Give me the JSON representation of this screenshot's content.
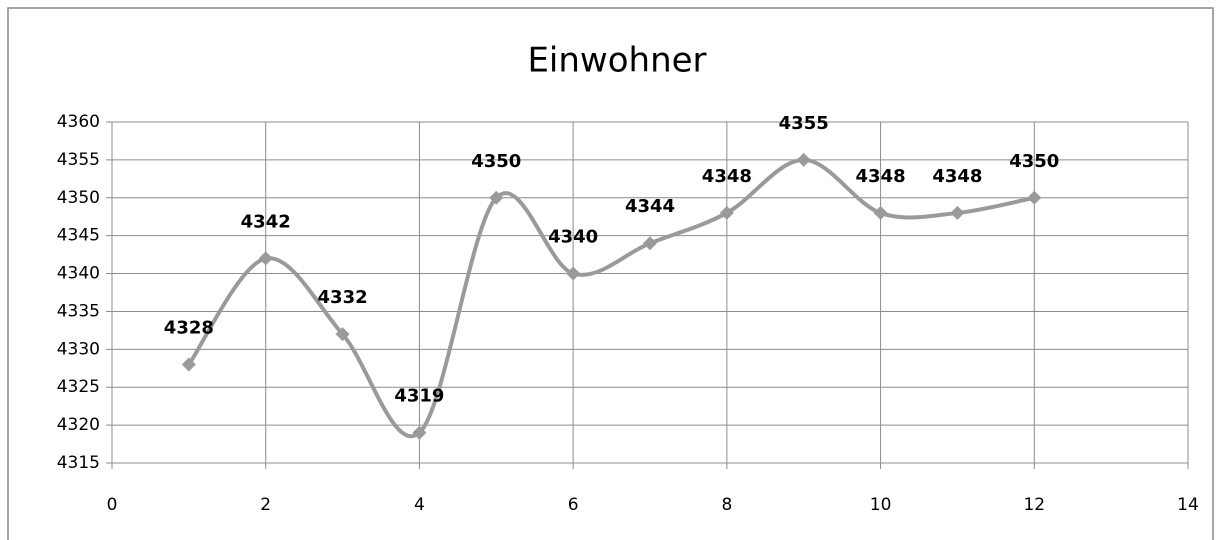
{
  "chart_data": {
    "type": "line",
    "title": "Einwohner",
    "x": [
      1,
      2,
      3,
      4,
      5,
      6,
      7,
      8,
      9,
      10,
      11,
      12
    ],
    "values": [
      4328,
      4342,
      4332,
      4319,
      4350,
      4340,
      4344,
      4348,
      4355,
      4348,
      4348,
      4350
    ],
    "color": "#9a9a9a",
    "smooth": true,
    "xlim": [
      0,
      14
    ],
    "xticks": [
      0,
      2,
      4,
      6,
      8,
      10,
      12,
      14
    ],
    "ylim": [
      4315,
      4360
    ],
    "yticks": [
      4315,
      4320,
      4325,
      4330,
      4335,
      4340,
      4345,
      4350,
      4355,
      4360
    ],
    "grid": true
  }
}
